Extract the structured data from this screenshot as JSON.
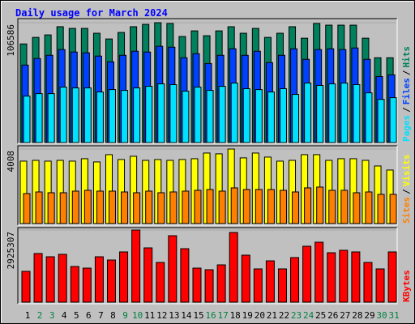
{
  "title": "Daily usage for March 2024",
  "chart_data": [
    {
      "type": "bar",
      "ylim": [
        0,
        106586
      ],
      "yticks": [
        106586
      ],
      "legend_separator": "/",
      "series": [
        {
          "name": "Hits",
          "color": "#00805c",
          "values": [
            87700,
            93500,
            95700,
            103000,
            101500,
            101500,
            97200,
            92100,
            97900,
            103000,
            105100,
            106586,
            105900,
            94300,
            99300,
            95000,
            99300,
            103000,
            97200,
            101500,
            93500,
            97200,
            103000,
            92800,
            105900,
            104400,
            104400,
            104400,
            92800,
            75400,
            75400
          ]
        },
        {
          "name": "Files",
          "color": "#0040ff",
          "values": [
            68900,
            74700,
            77600,
            82700,
            80500,
            79800,
            76900,
            71800,
            77600,
            81200,
            80500,
            85600,
            84800,
            75400,
            79000,
            70300,
            77600,
            83400,
            77600,
            81200,
            71100,
            77600,
            83400,
            74000,
            82700,
            83400,
            82700,
            84100,
            74000,
            58700,
            60200
          ]
        },
        {
          "name": "Pages",
          "color": "#00e0ff",
          "values": [
            41300,
            43500,
            43500,
            49300,
            48600,
            48600,
            45000,
            47100,
            46400,
            48600,
            50000,
            52200,
            51500,
            45700,
            49300,
            46400,
            50000,
            52900,
            47900,
            47100,
            45000,
            47900,
            42800,
            52900,
            50800,
            52200,
            52900,
            51500,
            44200,
            38400,
            39900
          ]
        }
      ]
    },
    {
      "type": "bar",
      "ylim": [
        0,
        4008
      ],
      "yticks": [
        4008
      ],
      "legend_separator": "/",
      "series": [
        {
          "name": "Visits",
          "color": "#ffff00",
          "values": [
            3357,
            3400,
            3357,
            3400,
            3357,
            3488,
            3314,
            3706,
            3444,
            3619,
            3400,
            3444,
            3400,
            3444,
            3488,
            3793,
            3750,
            4008,
            3532,
            3793,
            3575,
            3357,
            3400,
            3706,
            3706,
            3400,
            3488,
            3488,
            3400,
            3096,
            2878
          ]
        },
        {
          "name": "Sites",
          "color": "#ff8000",
          "values": [
            1613,
            1700,
            1657,
            1657,
            1744,
            1788,
            1744,
            1744,
            1700,
            1657,
            1744,
            1657,
            1700,
            1744,
            1788,
            1831,
            1744,
            1918,
            1831,
            1831,
            1831,
            1788,
            1700,
            1918,
            1962,
            1788,
            1788,
            1657,
            1700,
            1570,
            1570
          ]
        }
      ]
    },
    {
      "type": "bar",
      "ylim": [
        0,
        2925307
      ],
      "yticks": [
        2925307
      ],
      "legend_separator": "/",
      "categories": [
        "1",
        "2",
        "3",
        "4",
        "5",
        "6",
        "7",
        "8",
        "9",
        "10",
        "11",
        "12",
        "13",
        "14",
        "15",
        "16",
        "17",
        "18",
        "19",
        "20",
        "21",
        "22",
        "23",
        "24",
        "25",
        "26",
        "27",
        "28",
        "29",
        "30",
        "31"
      ],
      "category_colors": [
        "#000000",
        "#008040",
        "#008040",
        "#000000",
        "#000000",
        "#000000",
        "#000000",
        "#000000",
        "#008040",
        "#008040",
        "#000000",
        "#000000",
        "#000000",
        "#000000",
        "#000000",
        "#008040",
        "#008040",
        "#000000",
        "#000000",
        "#000000",
        "#000000",
        "#000000",
        "#008040",
        "#008040",
        "#000000",
        "#000000",
        "#000000",
        "#000000",
        "#000000",
        "#008040",
        "#008040"
      ],
      "series": [
        {
          "name": "KBytes",
          "color": "#ff0000",
          "values": [
            1249000,
            1972000,
            1841000,
            1939000,
            1446000,
            1380000,
            1841000,
            1709000,
            2038000,
            2925307,
            2202000,
            1611000,
            2695000,
            2169000,
            1380000,
            1315000,
            1512000,
            2827000,
            1906000,
            1348000,
            1676000,
            1348000,
            1808000,
            2268000,
            2432000,
            2005000,
            2104000,
            2038000,
            1611000,
            1348000,
            2038000
          ]
        }
      ]
    }
  ]
}
